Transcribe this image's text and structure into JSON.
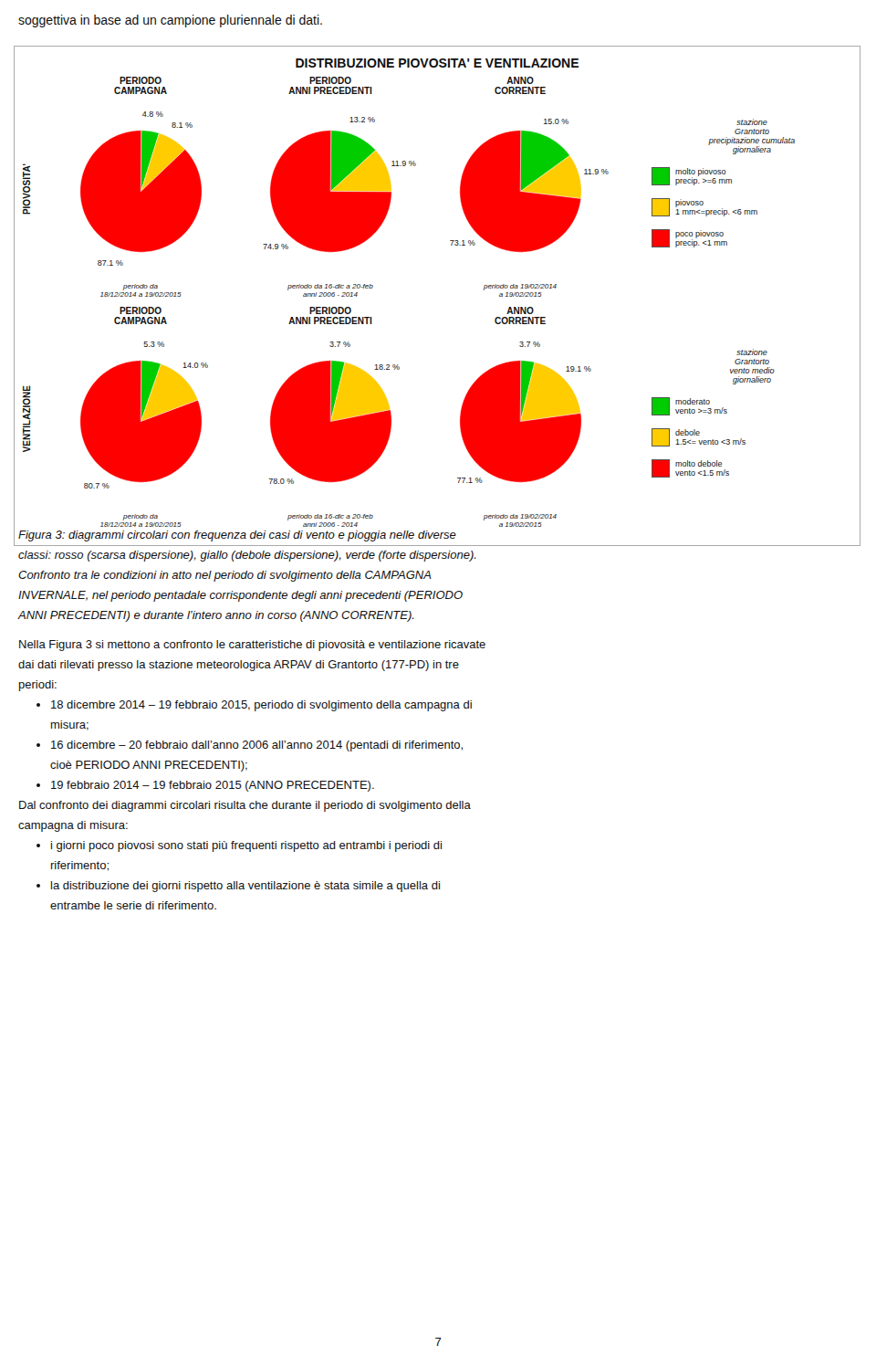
{
  "header": "soggettiva in base ad un campione pluriennale di dati.",
  "title": "DISTRIBUZIONE PIOVOSITA' E VENTILAZIONE",
  "groups": [
    {
      "label": "PIOVOSITA'",
      "legend_title": "stazione\nGrantorto\nprecipitazione cumulata\ngiornaliera"
    },
    {
      "label": "VENTILAZIONE",
      "legend_title": "stazione\nGrantorto\nvento medio\ngiornaliero"
    }
  ],
  "chart_data": [
    {
      "type": "pie",
      "group": "PIOVOSITA'",
      "title": "PERIODO\nCAMPAGNA",
      "subtitle": "periodo da\n18/12/2014 a 19/02/2015",
      "categories": [
        "molto piovoso\nprecip. >=6 mm",
        "piovoso\n1 mm<=precip. <6 mm",
        "poco piovoso\nprecip. <1 mm"
      ],
      "values": [
        4.8,
        8.1,
        87.1
      ],
      "value_labels": [
        "4.8 %",
        "8.1 %",
        "87.1 %"
      ],
      "colors": [
        "#00cc00",
        "#ffcc00",
        "#ff0000"
      ],
      "data_labels": true
    },
    {
      "type": "pie",
      "group": "PIOVOSITA'",
      "title": "PERIODO\nANNI PRECEDENTI",
      "subtitle": "periodo da 16-dic a 20-feb\nanni 2006 - 2014",
      "categories": [
        "molto piovoso\nprecip. >=6 mm",
        "piovoso\n1 mm<=precip. <6 mm",
        "poco piovoso\nprecip. <1 mm"
      ],
      "values": [
        13.2,
        11.9,
        74.9
      ],
      "value_labels": [
        "13.2 %",
        "11.9 %",
        "74.9 %"
      ],
      "colors": [
        "#00cc00",
        "#ffcc00",
        "#ff0000"
      ],
      "data_labels": true
    },
    {
      "type": "pie",
      "group": "PIOVOSITA'",
      "title": "ANNO\nCORRENTE",
      "subtitle": "periodo da 19/02/2014\na 19/02/2015",
      "categories": [
        "molto piovoso\nprecip. >=6 mm",
        "piovoso\n1 mm<=precip. <6 mm",
        "poco piovoso\nprecip. <1 mm"
      ],
      "values": [
        15.0,
        11.9,
        73.1
      ],
      "value_labels": [
        "15.0 %",
        "11.9 %",
        "73.1 %"
      ],
      "colors": [
        "#00cc00",
        "#ffcc00",
        "#ff0000"
      ],
      "data_labels": true
    },
    {
      "type": "pie",
      "group": "VENTILAZIONE",
      "title": "PERIODO\nCAMPAGNA",
      "subtitle": "periodo da\n18/12/2014 a 19/02/2015",
      "categories": [
        "moderato\nvento >=3 m/s",
        "debole\n1.5<= vento <3 m/s",
        "molto debole\nvento <1.5 m/s"
      ],
      "values": [
        5.3,
        14.0,
        80.7
      ],
      "value_labels": [
        "5.3 %",
        "14.0 %",
        "80.7 %"
      ],
      "colors": [
        "#00cc00",
        "#ffcc00",
        "#ff0000"
      ],
      "data_labels": true
    },
    {
      "type": "pie",
      "group": "VENTILAZIONE",
      "title": "PERIODO\nANNI PRECEDENTI",
      "subtitle": "periodo da 16-dic a 20-feb\nanni 2006 - 2014",
      "categories": [
        "moderato\nvento >=3 m/s",
        "debole\n1.5<= vento <3 m/s",
        "molto debole\nvento <1.5 m/s"
      ],
      "values": [
        3.7,
        18.2,
        78.0
      ],
      "value_labels": [
        "3.7 %",
        "18.2 %",
        "78.0 %"
      ],
      "colors": [
        "#00cc00",
        "#ffcc00",
        "#ff0000"
      ],
      "data_labels": true
    },
    {
      "type": "pie",
      "group": "VENTILAZIONE",
      "title": "ANNO\nCORRENTE",
      "subtitle": "periodo da 19/02/2014\na 19/02/2015",
      "categories": [
        "moderato\nvento >=3 m/s",
        "debole\n1.5<= vento <3 m/s",
        "molto debole\nvento <1.5 m/s"
      ],
      "values": [
        3.7,
        19.1,
        77.1
      ],
      "value_labels": [
        "3.7 %",
        "19.1 %",
        "77.1 %"
      ],
      "colors": [
        "#00cc00",
        "#ffcc00",
        "#ff0000"
      ],
      "data_labels": true
    }
  ],
  "caption": [
    "Figura 3: diagrammi circolari con frequenza dei casi di vento e pioggia nelle diverse",
    "classi: rosso (scarsa dispersione), giallo (debole dispersione), verde (forte dispersione).",
    "Confronto tra le condizioni in atto nel periodo di svolgimento della CAMPAGNA",
    "INVERNALE, nel periodo pentadale corrispondente degli anni precedenti (PERIODO",
    "ANNI PRECEDENTI) e durante l’intero anno in corso (ANNO CORRENTE)."
  ],
  "text": [
    {
      "lines": [
        "Nella Figura 3 si mettono a confronto le caratteristiche di piovosità e ventilazione ricavate",
        "dai dati rilevati presso la stazione meteorologica ARPAV di Grantorto (177-PD) in tre",
        "periodi:"
      ]
    },
    {
      "bullet": true,
      "lines": [
        "18 dicembre 2014 – 19 febbraio 2015, periodo di svolgimento della campagna di",
        "misura;"
      ]
    },
    {
      "bullet": true,
      "lines": [
        "16 dicembre – 20 febbraio dall’anno 2006 all’anno 2014 (pentadi di riferimento,",
        "cioè PERIODO ANNI PRECEDENTI);"
      ]
    },
    {
      "bullet": true,
      "lines": [
        "19 febbraio 2014 – 19 febbraio 2015 (ANNO PRECEDENTE)."
      ]
    },
    {
      "lines": [
        "Dal confronto dei diagrammi circolari risulta che durante il periodo di svolgimento della",
        "campagna di misura:"
      ]
    },
    {
      "bullet": true,
      "lines": [
        "i giorni poco piovosi sono stati più frequenti rispetto ad entrambi i periodi di",
        "riferimento;"
      ]
    },
    {
      "bullet": true,
      "lines": [
        "la distribuzione dei giorni rispetto alla ventilazione è stata simile a quella di",
        "entrambe le serie di riferimento."
      ]
    }
  ],
  "page_number": "7"
}
